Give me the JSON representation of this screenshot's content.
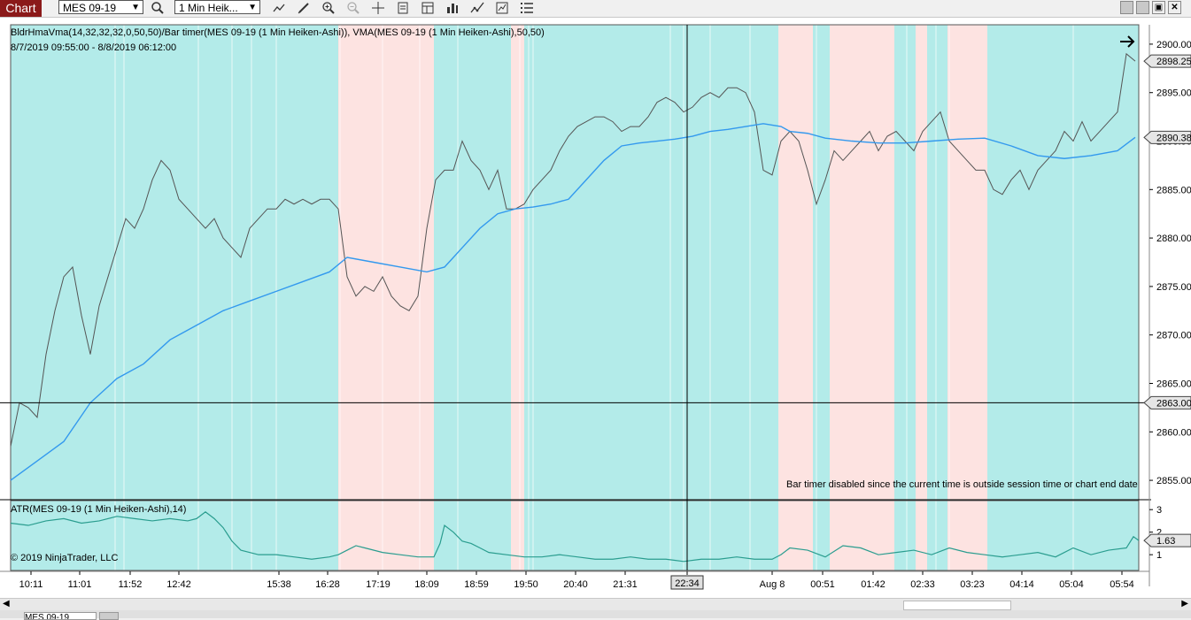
{
  "toolbar": {
    "tab_label": "Chart",
    "instrument": "MES 09-19",
    "interval": "1 Min Heik...",
    "icons": [
      "search-icon",
      "line-icon",
      "pencil-icon",
      "zoom-in-icon",
      "zoom-out-icon",
      "crosshair-icon",
      "properties-icon",
      "data-box-icon",
      "bar-style-icon",
      "indicators-icon",
      "strategies-icon",
      "menu-icon"
    ],
    "window_buttons": [
      "minimize-icon",
      "restore-icon",
      "maximize-icon",
      "close-icon"
    ]
  },
  "chart": {
    "indicator_title": "BldrHmaVma(14,32,32,32,0,50,50)/Bar timer(MES 09-19 (1 Min Heiken-Ashi)), VMA(MES 09-19 (1 Min Heiken-Ashi),50,50)",
    "date_range": "8/7/2019 09:55:00 - 8/8/2019 06:12:00",
    "bar_timer_msg": "Bar timer disabled since the current time is outside session time or chart end date",
    "lower_title": "ATR(MES 09-19 (1 Min Heiken-Ashi),14)",
    "copyright": "© 2019 NinjaTrader, LLC",
    "price_last": "2898.25",
    "price_vma": "2890.38",
    "price_cross": "2863.00",
    "atr_last": "1.63",
    "cross_time": "22:34",
    "colors": {
      "bull_bg": "#b3ebe9",
      "bear_bg": "#fde3e1",
      "price_line": "#555555",
      "vma_line": "#3399ee",
      "atr_line": "#2a9d8f",
      "crosshair": "#000000"
    }
  },
  "chart_data": [
    {
      "type": "line",
      "title": "",
      "series": [
        {
          "name": "BldrHmaVma",
          "x": [
            0,
            10,
            20,
            30,
            40,
            50,
            60,
            70,
            80,
            90,
            100,
            110,
            120,
            130,
            140,
            150,
            160,
            170,
            180,
            190,
            200,
            210,
            220,
            230,
            240,
            250,
            260,
            270,
            280,
            290,
            300,
            310,
            320,
            330,
            340,
            350,
            360,
            370,
            380,
            390,
            400,
            410,
            420,
            430,
            440,
            450,
            460,
            470,
            480,
            490,
            500,
            510,
            520,
            530,
            540,
            550,
            560,
            570,
            580,
            590,
            600,
            610,
            620,
            630,
            640,
            650,
            660,
            670,
            680,
            690,
            700,
            710,
            720,
            730,
            740,
            750,
            760,
            770,
            780,
            790,
            800,
            810,
            820,
            830,
            840,
            850,
            860,
            870,
            880,
            890,
            900,
            910,
            920,
            930,
            940,
            950,
            960,
            970,
            980,
            990,
            1000,
            1010,
            1020,
            1030,
            1040,
            1050,
            1060,
            1070,
            1080,
            1090,
            1100,
            1110,
            1120,
            1130,
            1140,
            1150,
            1160,
            1170,
            1180,
            1190,
            1200,
            1210,
            1220,
            1230,
            1240,
            1250,
            1260,
            1270
          ],
          "values": [
            2858.5,
            2863,
            2862.5,
            2861.5,
            2868,
            2872.5,
            2876,
            2877,
            2872,
            2868,
            2873,
            2876,
            2879,
            2882,
            2881,
            2883,
            2886,
            2888,
            2887,
            2884,
            2883,
            2882,
            2881,
            2882,
            2880,
            2879,
            2878,
            2881,
            2882,
            2883,
            2883,
            2884,
            2883.5,
            2884,
            2883.5,
            2884,
            2884,
            2883,
            2876,
            2874,
            2875,
            2874.5,
            2876,
            2874,
            2873,
            2872.5,
            2874,
            2881,
            2886,
            2887,
            2887,
            2890,
            2888,
            2887,
            2885,
            2887,
            2883,
            2883,
            2883.5,
            2885,
            2886,
            2887,
            2889,
            2890.5,
            2891.5,
            2892,
            2892.5,
            2892.5,
            2892,
            2891,
            2891.5,
            2891.5,
            2892.5,
            2894,
            2894.5,
            2894,
            2893,
            2893.5,
            2894.5,
            2895,
            2894.5,
            2895.5,
            2895.5,
            2895,
            2893,
            2887,
            2886.5,
            2890,
            2891,
            2890,
            2887,
            2883.5,
            2886,
            2889,
            2888,
            2889,
            2890,
            2891,
            2889,
            2890.5,
            2891,
            2890,
            2889,
            2891,
            2892,
            2893,
            2890,
            2889,
            2888,
            2887,
            2887,
            2885,
            2884.5,
            2886,
            2887,
            2885,
            2887,
            2888,
            2889,
            2891,
            2890,
            2892,
            2890,
            2891,
            2892,
            2893,
            2899,
            2898.25
          ]
        },
        {
          "name": "VMA",
          "x": [
            0,
            30,
            60,
            90,
            120,
            150,
            180,
            210,
            240,
            270,
            300,
            330,
            360,
            380,
            410,
            440,
            470,
            490,
            510,
            530,
            550,
            570,
            590,
            610,
            630,
            650,
            670,
            690,
            710,
            730,
            750,
            770,
            790,
            810,
            830,
            850,
            870,
            880,
            900,
            920,
            950,
            980,
            1010,
            1040,
            1070,
            1100,
            1130,
            1160,
            1190,
            1220,
            1250,
            1270
          ],
          "values": [
            2855,
            2857,
            2859,
            2863,
            2865.5,
            2867,
            2869.5,
            2871,
            2872.5,
            2873.5,
            2874.5,
            2875.5,
            2876.5,
            2878,
            2877.5,
            2877,
            2876.5,
            2877,
            2879,
            2881,
            2882.5,
            2883,
            2883.2,
            2883.5,
            2884,
            2886,
            2888,
            2889.5,
            2889.8,
            2890,
            2890.2,
            2890.5,
            2891,
            2891.2,
            2891.5,
            2891.8,
            2891.5,
            2891,
            2890.8,
            2890.3,
            2890,
            2889.8,
            2889.8,
            2890,
            2890.2,
            2890.3,
            2889.5,
            2888.5,
            2888.2,
            2888.5,
            2889,
            2890.38
          ]
        }
      ],
      "ylim": [
        2853,
        2902
      ],
      "yticks": [
        "2900.00",
        "2895.00",
        "2890.00",
        "2885.00",
        "2880.00",
        "2875.00",
        "2870.00",
        "2865.00",
        "2860.00",
        "2855.00"
      ],
      "xticks": [
        "10:11",
        "11:01",
        "11:52",
        "12:42",
        "15:38",
        "16:28",
        "17:19",
        "18:09",
        "18:59",
        "19:50",
        "20:40",
        "21:31",
        "22:34",
        "Aug 8",
        "00:51",
        "01:42",
        "02:33",
        "03:23",
        "04:14",
        "05:04",
        "05:54"
      ],
      "background_zones": [
        {
          "from": 0,
          "to": 370,
          "state": "bull"
        },
        {
          "from": 370,
          "to": 478,
          "state": "bear"
        },
        {
          "from": 478,
          "to": 565,
          "state": "bull"
        },
        {
          "from": 565,
          "to": 580,
          "state": "bear"
        },
        {
          "from": 580,
          "to": 867,
          "state": "bull"
        },
        {
          "from": 867,
          "to": 906,
          "state": "bear"
        },
        {
          "from": 906,
          "to": 925,
          "state": "bull"
        },
        {
          "from": 925,
          "to": 998,
          "state": "bear"
        },
        {
          "from": 998,
          "to": 1022,
          "state": "bull"
        },
        {
          "from": 1022,
          "to": 1035,
          "state": "bear"
        },
        {
          "from": 1035,
          "to": 1058,
          "state": "bull"
        },
        {
          "from": 1058,
          "to": 1103,
          "state": "bear"
        },
        {
          "from": 1103,
          "to": 1197,
          "state": "bull"
        },
        {
          "from": 1197,
          "to": 1274,
          "state": "bull"
        }
      ]
    },
    {
      "type": "line",
      "title": "",
      "series": [
        {
          "name": "ATR",
          "x": [
            0,
            20,
            40,
            60,
            80,
            100,
            120,
            140,
            160,
            180,
            200,
            210,
            220,
            230,
            240,
            250,
            260,
            280,
            300,
            320,
            340,
            360,
            370,
            380,
            390,
            400,
            420,
            440,
            460,
            470,
            478,
            485,
            490,
            500,
            510,
            520,
            530,
            540,
            560,
            580,
            600,
            620,
            640,
            660,
            680,
            700,
            720,
            740,
            760,
            780,
            800,
            820,
            840,
            860,
            870,
            880,
            900,
            920,
            940,
            960,
            980,
            1000,
            1020,
            1040,
            1060,
            1080,
            1100,
            1120,
            1140,
            1160,
            1180,
            1200,
            1220,
            1240,
            1260,
            1268,
            1274
          ],
          "values": [
            2.4,
            2.3,
            2.5,
            2.6,
            2.4,
            2.5,
            2.7,
            2.6,
            2.5,
            2.6,
            2.5,
            2.6,
            2.9,
            2.6,
            2.2,
            1.6,
            1.2,
            1.0,
            1.0,
            0.9,
            0.8,
            0.9,
            1.0,
            1.2,
            1.4,
            1.3,
            1.1,
            1.0,
            0.9,
            0.9,
            0.9,
            1.5,
            2.3,
            2.0,
            1.6,
            1.5,
            1.3,
            1.1,
            1.0,
            0.9,
            0.9,
            1.0,
            0.9,
            0.8,
            0.8,
            0.9,
            0.8,
            0.8,
            0.7,
            0.8,
            0.8,
            0.9,
            0.8,
            0.8,
            1.0,
            1.3,
            1.2,
            0.9,
            1.4,
            1.3,
            1.0,
            1.1,
            1.2,
            1.0,
            1.3,
            1.1,
            1.0,
            0.9,
            1.0,
            1.1,
            0.9,
            1.3,
            1.0,
            1.2,
            1.3,
            1.8,
            1.63
          ]
        }
      ],
      "ylim": [
        0.3,
        3.4
      ],
      "yticks": [
        "3",
        "2",
        "1"
      ]
    }
  ]
}
